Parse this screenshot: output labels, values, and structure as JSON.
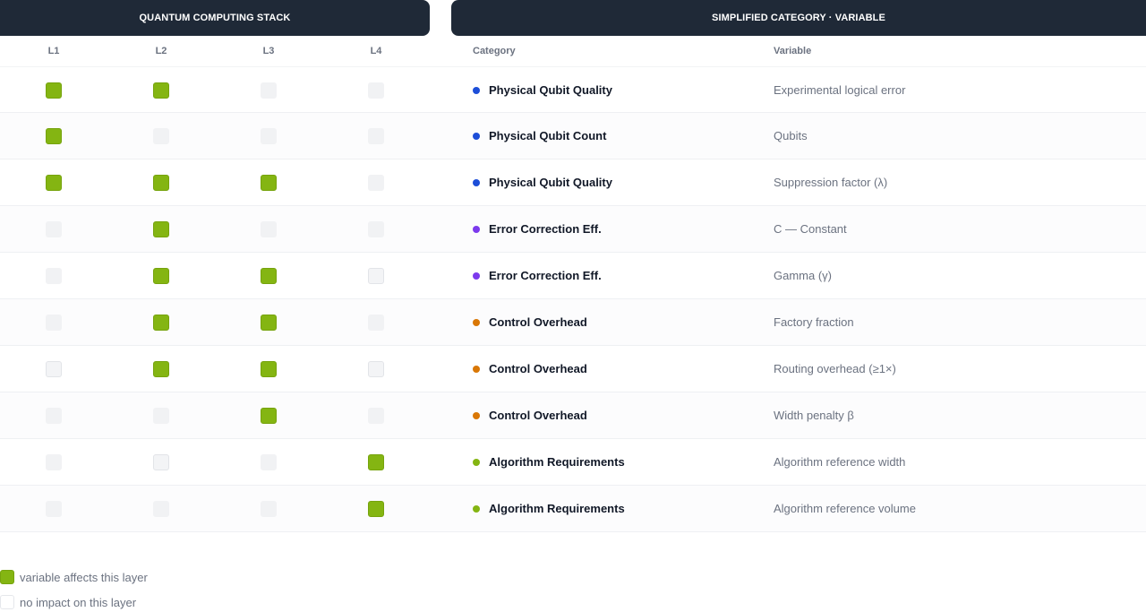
{
  "headers": {
    "left": "QUANTUM COMPUTING STACK",
    "right": "SIMPLIFIED CATEGORY  ·  VARIABLE"
  },
  "columns": {
    "layers": [
      "L1",
      "L2",
      "L3",
      "L4"
    ],
    "category": "Category",
    "variable": "Variable"
  },
  "colors": {
    "on": "#84b512",
    "physical": "#1d4ed8",
    "error": "#7c3aed",
    "control": "#d97706",
    "algorithm": "#84b512"
  },
  "rows": [
    {
      "category": "Physical Qubit Quality",
      "variable": "Experimental logical error",
      "group": "physical",
      "layers": [
        true,
        true,
        false,
        false
      ]
    },
    {
      "category": "Physical Qubit Count",
      "variable": "Qubits",
      "group": "physical",
      "layers": [
        true,
        false,
        false,
        false
      ]
    },
    {
      "category": "Physical Qubit Quality",
      "variable": "Suppression factor (λ)",
      "group": "physical",
      "layers": [
        true,
        true,
        true,
        false
      ]
    },
    {
      "category": "Error Correction Eff.",
      "variable": "C — Constant",
      "group": "error",
      "layers": [
        false,
        true,
        false,
        false
      ]
    },
    {
      "category": "Error Correction Eff.",
      "variable": "Gamma (γ)",
      "group": "error",
      "layers": [
        false,
        true,
        true,
        false
      ]
    },
    {
      "category": "Control Overhead",
      "variable": "Factory fraction",
      "group": "control",
      "layers": [
        false,
        true,
        true,
        false
      ]
    },
    {
      "category": "Control Overhead",
      "variable": "Routing overhead (≥1×)",
      "group": "control",
      "layers": [
        false,
        true,
        true,
        false
      ]
    },
    {
      "category": "Control Overhead",
      "variable": "Width penalty β",
      "group": "control",
      "layers": [
        false,
        false,
        true,
        false
      ]
    },
    {
      "category": "Algorithm Requirements",
      "variable": "Algorithm reference width",
      "group": "algorithm",
      "layers": [
        false,
        false,
        false,
        true
      ]
    },
    {
      "category": "Algorithm Requirements",
      "variable": "Algorithm reference volume",
      "group": "algorithm",
      "layers": [
        false,
        false,
        false,
        true
      ]
    }
  ],
  "legend": {
    "on": "variable affects this layer",
    "off": "no impact on this layer"
  }
}
